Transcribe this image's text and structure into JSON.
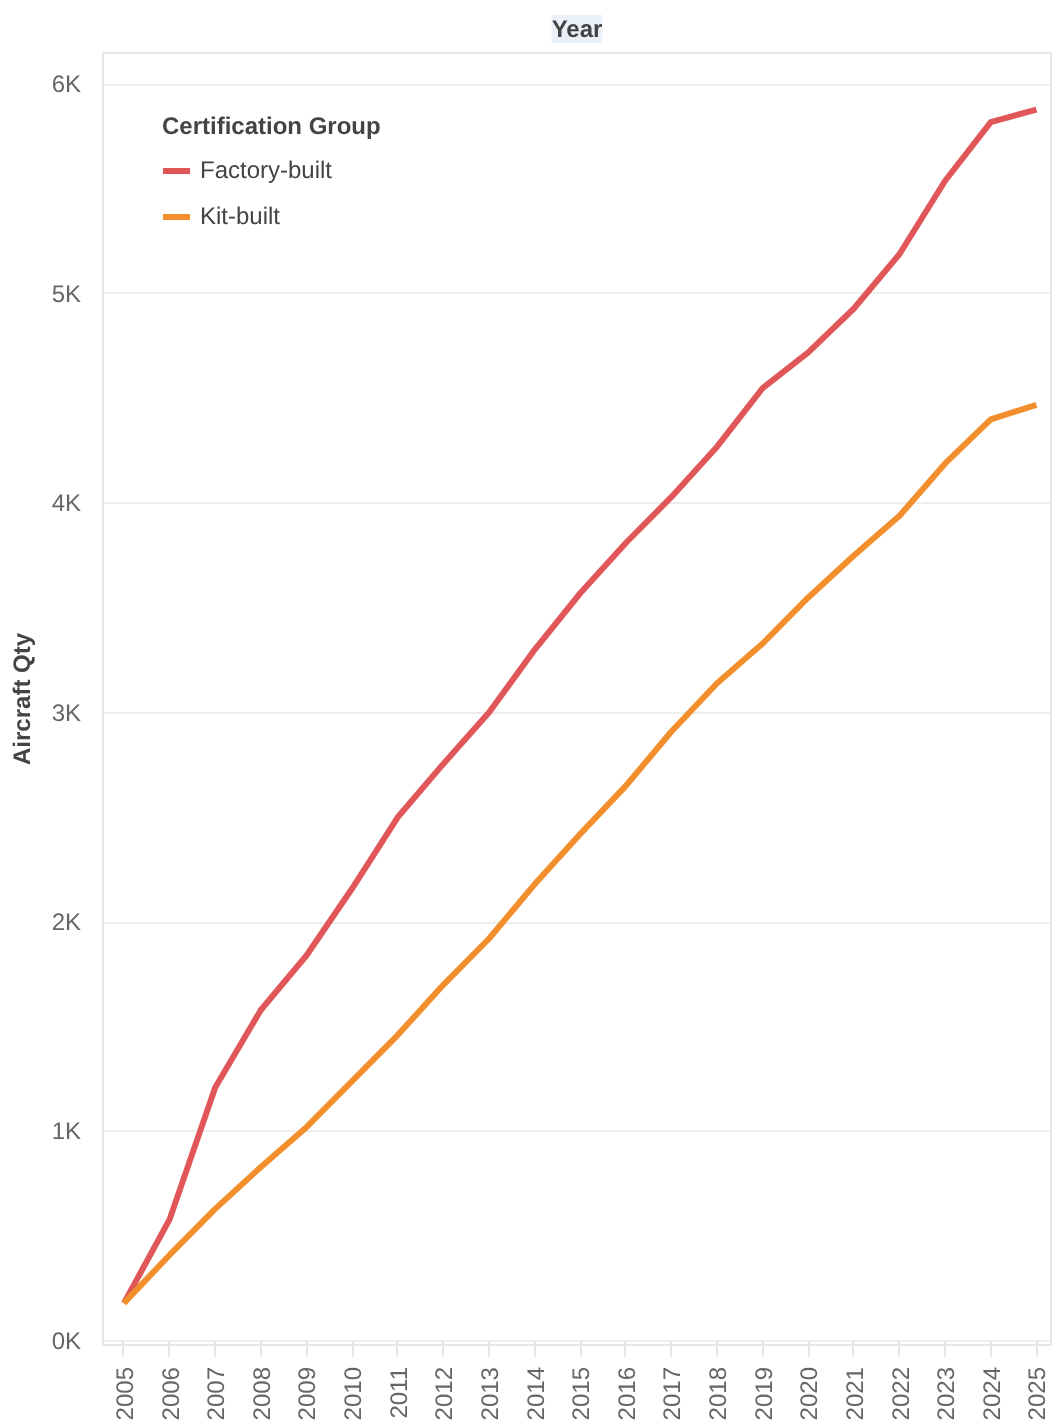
{
  "chart_data": {
    "type": "line",
    "title": "Year",
    "ylabel": "Aircraft Qty",
    "legend_title": "Certification Group",
    "x": [
      2005,
      2006,
      2007,
      2008,
      2009,
      2010,
      2011,
      2012,
      2013,
      2014,
      2015,
      2016,
      2017,
      2018,
      2019,
      2020,
      2021,
      2022,
      2023,
      2024,
      2025
    ],
    "series": [
      {
        "name": "Factory-built",
        "color": "#e15759",
        "values": [
          180,
          580,
          1210,
          1580,
          1840,
          2160,
          2500,
          2755,
          3000,
          3300,
          3570,
          3810,
          4030,
          4270,
          4550,
          4720,
          4930,
          5190,
          5540,
          5820,
          5880
        ]
      },
      {
        "name": "Kit-built",
        "color": "#f28e2b",
        "values": [
          180,
          410,
          630,
          830,
          1020,
          1240,
          1460,
          1700,
          1920,
          2180,
          2420,
          2650,
          2910,
          3140,
          3330,
          3550,
          3750,
          3940,
          4190,
          4400,
          4470
        ]
      }
    ],
    "xlim": [
      2004.54,
      2025.32
    ],
    "ylim": [
      -20,
      6150
    ],
    "xticks": [
      2005,
      2006,
      2007,
      2008,
      2009,
      2010,
      2011,
      2012,
      2013,
      2014,
      2015,
      2016,
      2017,
      2018,
      2019,
      2020,
      2021,
      2022,
      2023,
      2024,
      2025
    ],
    "yticks": [
      {
        "value": 0,
        "label": "0K"
      },
      {
        "value": 1000,
        "label": "1K"
      },
      {
        "value": 2000,
        "label": "2K"
      },
      {
        "value": 3000,
        "label": "3K"
      },
      {
        "value": 4000,
        "label": "4K"
      },
      {
        "value": 5000,
        "label": "5K"
      },
      {
        "value": 6000,
        "label": "6K"
      }
    ],
    "grid": "y",
    "legend": "top left",
    "marker": "none",
    "line_style": "solid"
  }
}
